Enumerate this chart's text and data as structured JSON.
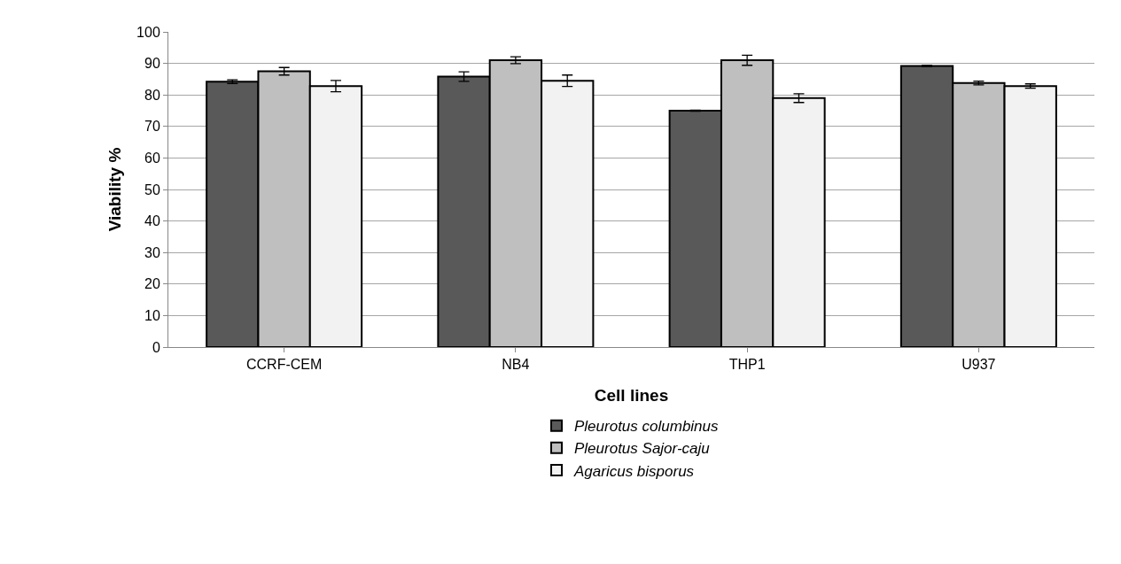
{
  "chart_data": {
    "type": "bar",
    "xlabel": "Cell lines",
    "ylabel": "Viability %",
    "categories": [
      "CCRF-CEM",
      "NB4",
      "THP1",
      "U937"
    ],
    "series": [
      {
        "name": "Pleurotus columbinus",
        "color": "#595959",
        "values": [
          84.2,
          85.8,
          75,
          89.2
        ],
        "errors": [
          0.6,
          1.5,
          0.2,
          0.2
        ]
      },
      {
        "name": "Pleurotus Sajor-caju",
        "color": "#bfbfbf",
        "values": [
          87.5,
          91,
          91,
          83.8
        ],
        "errors": [
          1.2,
          1.1,
          1.6,
          0.6
        ]
      },
      {
        "name": "Agaricus bisporus",
        "color": "#f2f2f2",
        "values": [
          82.8,
          84.5,
          79,
          82.8
        ],
        "errors": [
          1.8,
          1.8,
          1.4,
          0.7
        ]
      }
    ],
    "ylim": [
      0,
      100
    ],
    "yticks": [
      0,
      10,
      20,
      30,
      40,
      50,
      60,
      70,
      80,
      90,
      100
    ],
    "grid": "y",
    "legend": "bottom"
  }
}
